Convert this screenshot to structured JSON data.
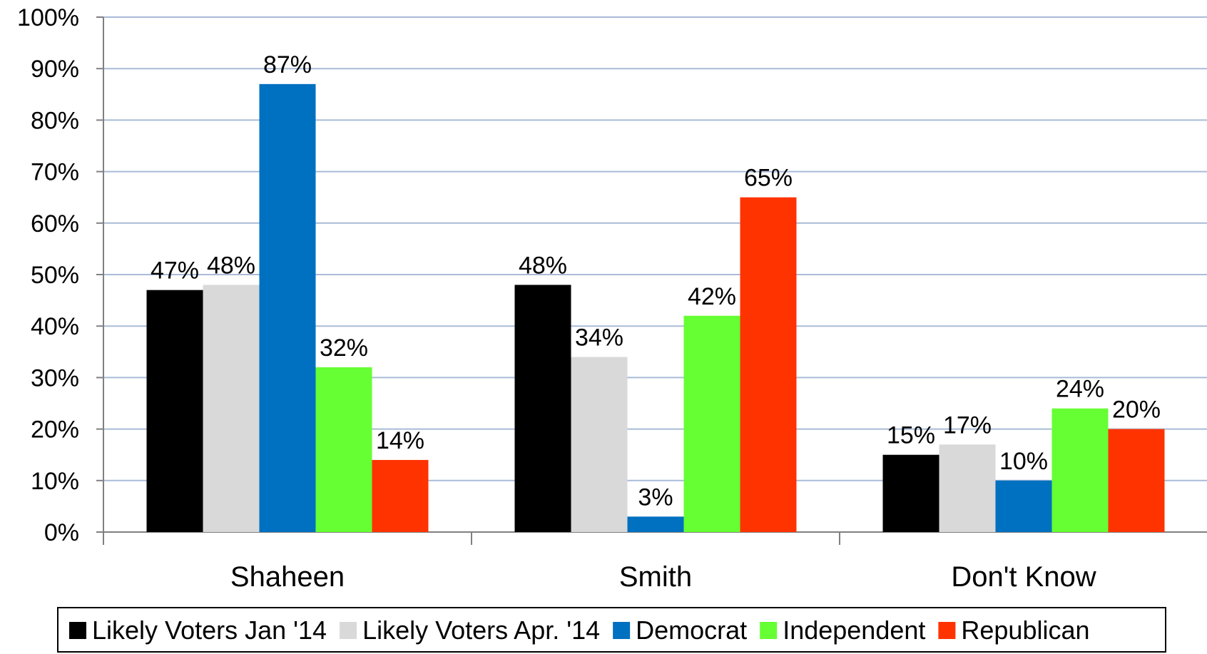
{
  "chart_data": {
    "type": "bar",
    "title": "",
    "xlabel": "",
    "ylabel": "",
    "categories": [
      "Shaheen",
      "Smith",
      "Don't Know"
    ],
    "series": [
      {
        "name": "Likely Voters Jan '14",
        "color": "#000000",
        "values": [
          47,
          48,
          15
        ]
      },
      {
        "name": "Likely Voters Apr. '14",
        "color": "#d9d9d9",
        "values": [
          48,
          34,
          17
        ]
      },
      {
        "name": "Democrat",
        "color": "#0070c0",
        "values": [
          87,
          3,
          10
        ]
      },
      {
        "name": "Independent",
        "color": "#66ff33",
        "values": [
          32,
          42,
          24
        ]
      },
      {
        "name": "Republican",
        "color": "#ff3300",
        "values": [
          14,
          65,
          20
        ]
      }
    ],
    "ylim": [
      0,
      100
    ],
    "y_ticks": [
      "0%",
      "10%",
      "20%",
      "30%",
      "40%",
      "50%",
      "60%",
      "70%",
      "80%",
      "90%",
      "100%"
    ],
    "value_suffix": "%",
    "grid": true,
    "legend_position": "bottom"
  }
}
